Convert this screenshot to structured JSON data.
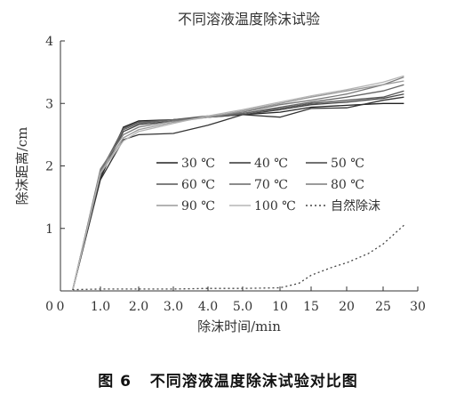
{
  "figure": {
    "caption_number": "图 6",
    "caption_text": "不同溶液温度除沫试验对比图"
  },
  "chart_data": {
    "type": "line",
    "title": "不同溶液温度除沫试验",
    "xlabel": "除沫时间/min",
    "ylabel": "除沫距离/cm",
    "x_tick_labels": [
      "0",
      "1.0",
      "2.0",
      "3.0",
      "4.0",
      "5.0",
      "10",
      "15",
      "20",
      "25",
      "30"
    ],
    "y_tick_labels": [
      "0",
      "1",
      "2",
      "3",
      "4"
    ],
    "ylim": [
      0,
      4
    ],
    "grid": false,
    "legend_position": "center-right",
    "series": [
      {
        "name": "30 ℃",
        "style": "solid",
        "color": "#222222",
        "x": [
          0.3,
          1.0,
          1.6,
          2.0,
          3.0,
          4.0,
          5.0,
          10,
          15,
          20,
          25,
          28
        ],
        "y": [
          0,
          1.8,
          2.62,
          2.72,
          2.74,
          2.78,
          2.82,
          2.86,
          2.94,
          2.97,
          3.0,
          3.0
        ]
      },
      {
        "name": "40 ℃",
        "style": "solid",
        "color": "#333333",
        "x": [
          0.3,
          1.0,
          1.6,
          2.0,
          3.0,
          4.0,
          5.0,
          10,
          15,
          20,
          25,
          28
        ],
        "y": [
          0,
          1.78,
          2.42,
          2.5,
          2.52,
          2.65,
          2.82,
          2.78,
          2.92,
          2.93,
          3.05,
          3.1
        ]
      },
      {
        "name": "50 ℃",
        "style": "solid",
        "color": "#444444",
        "x": [
          0.3,
          1.0,
          1.6,
          2.0,
          3.0,
          4.0,
          5.0,
          10,
          15,
          20,
          25,
          28
        ],
        "y": [
          0,
          1.85,
          2.55,
          2.66,
          2.72,
          2.78,
          2.82,
          2.9,
          2.98,
          3.02,
          3.08,
          3.15
        ]
      },
      {
        "name": "60 ℃",
        "style": "solid",
        "color": "#555555",
        "x": [
          0.3,
          1.0,
          1.6,
          2.0,
          3.0,
          4.0,
          5.0,
          10,
          15,
          20,
          25,
          28
        ],
        "y": [
          0,
          1.9,
          2.6,
          2.7,
          2.74,
          2.8,
          2.84,
          2.92,
          3.0,
          3.05,
          3.1,
          3.2
        ]
      },
      {
        "name": "70 ℃",
        "style": "solid",
        "color": "#666666",
        "x": [
          0.3,
          1.0,
          1.6,
          2.0,
          3.0,
          4.0,
          5.0,
          10,
          15,
          20,
          25,
          28
        ],
        "y": [
          0,
          1.92,
          2.58,
          2.68,
          2.74,
          2.78,
          2.84,
          2.94,
          3.02,
          3.1,
          3.2,
          3.3
        ]
      },
      {
        "name": "80 ℃",
        "style": "solid",
        "color": "#7a7a7a",
        "x": [
          0.3,
          1.0,
          1.6,
          2.0,
          3.0,
          4.0,
          5.0,
          10,
          15,
          20,
          25,
          28
        ],
        "y": [
          0,
          1.95,
          2.5,
          2.62,
          2.72,
          2.78,
          2.86,
          2.98,
          3.05,
          3.15,
          3.3,
          3.42
        ]
      },
      {
        "name": "90 ℃",
        "style": "solid",
        "color": "#9a9a9a",
        "x": [
          0.3,
          1.0,
          1.6,
          2.0,
          3.0,
          4.0,
          5.0,
          10,
          15,
          20,
          25,
          28
        ],
        "y": [
          0,
          1.9,
          2.45,
          2.58,
          2.7,
          2.78,
          2.88,
          3.0,
          3.1,
          3.2,
          3.3,
          3.36
        ]
      },
      {
        "name": "100 ℃",
        "style": "solid",
        "color": "#b5b5b5",
        "x": [
          0.3,
          1.0,
          1.6,
          2.0,
          3.0,
          4.0,
          5.0,
          10,
          15,
          20,
          25,
          28
        ],
        "y": [
          0,
          1.88,
          2.4,
          2.55,
          2.68,
          2.8,
          2.9,
          3.02,
          3.12,
          3.22,
          3.34,
          3.44
        ]
      },
      {
        "name": "自然除沫",
        "style": "dotted",
        "color": "#444444",
        "x": [
          0.3,
          1.0,
          2.0,
          3.0,
          4.0,
          5.0,
          10,
          13,
          15,
          18,
          20,
          23,
          25,
          28
        ],
        "y": [
          0.02,
          0.03,
          0.03,
          0.03,
          0.04,
          0.04,
          0.05,
          0.12,
          0.25,
          0.38,
          0.45,
          0.6,
          0.75,
          1.05
        ]
      }
    ]
  }
}
